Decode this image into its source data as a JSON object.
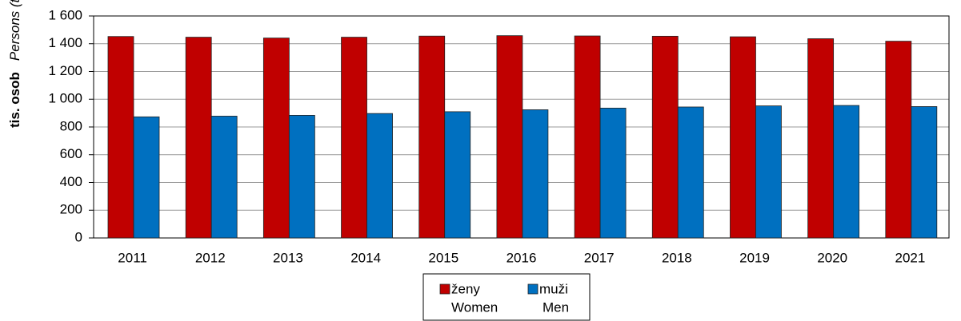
{
  "chart_data": {
    "type": "bar",
    "y_label": "tis. osob",
    "y_label_en": "Persons (thous.)",
    "categories": [
      "2011",
      "2012",
      "2013",
      "2014",
      "2015",
      "2016",
      "2017",
      "2018",
      "2019",
      "2020",
      "2021"
    ],
    "series": [
      {
        "name": "ženy",
        "name_en": "Women",
        "color": "#c00000",
        "values": [
          1452,
          1447,
          1441,
          1447,
          1455,
          1458,
          1456,
          1454,
          1450,
          1436,
          1418
        ]
      },
      {
        "name": "muži",
        "name_en": "Men",
        "color": "#0070c0",
        "values": [
          873,
          878,
          884,
          897,
          910,
          924,
          936,
          944,
          952,
          955,
          947
        ]
      }
    ],
    "ylim": [
      0,
      1600
    ],
    "yticks": [
      0,
      200,
      400,
      600,
      800,
      {
        "value": 1000,
        "label": "1 000"
      },
      {
        "value": 1200,
        "label": "1 200"
      },
      {
        "value": 1400,
        "label": "1 400"
      },
      {
        "value": 1600,
        "label": "1 600"
      }
    ],
    "grid": true
  }
}
